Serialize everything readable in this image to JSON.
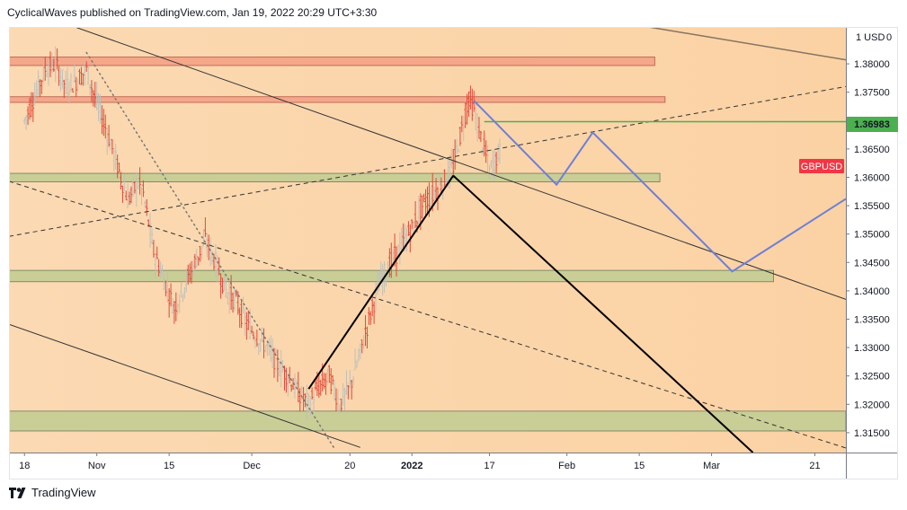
{
  "header": {
    "published_text": "CyclicalWaves published on TradingView.com, Jan 19, 2022 20:29 UTC+3:30"
  },
  "footer": {
    "brand": "TradingView"
  },
  "chart_data": {
    "type": "candlestick",
    "symbol": "GBPUSD",
    "currency_label": "1 USD",
    "currency_flag": "0",
    "current_price": "1.36983",
    "y_ticks": [
      "1.38000",
      "1.37500",
      "1.37000",
      "1.36500",
      "1.36000",
      "1.35500",
      "1.35000",
      "1.34500",
      "1.34000",
      "1.33500",
      "1.33000",
      "1.32500",
      "1.32000",
      "1.31500"
    ],
    "ylim": [
      1.3115,
      1.3865
    ],
    "x_ticks": [
      {
        "label": "18",
        "day": 0
      },
      {
        "label": "Nov",
        "day": 14
      },
      {
        "label": "15",
        "day": 28
      },
      {
        "label": "Dec",
        "day": 44
      },
      {
        "label": "20",
        "day": 63
      },
      {
        "label": "2022",
        "day": 75,
        "bold": true
      },
      {
        "label": "17",
        "day": 90
      },
      {
        "label": "Feb",
        "day": 105
      },
      {
        "label": "15",
        "day": 119
      },
      {
        "label": "Mar",
        "day": 133
      },
      {
        "label": "21",
        "day": 153
      }
    ],
    "x_domain_days": [
      -3,
      159
    ],
    "x_anchor_date": "Oct 18",
    "zones": [
      {
        "kind": "resistance",
        "y1": 1.3812,
        "y2": 1.3797,
        "d1": -3,
        "d2": 122,
        "color": "#f4a789"
      },
      {
        "kind": "resistance",
        "y1": 1.3742,
        "y2": 1.3732,
        "d1": -3,
        "d2": 124,
        "color": "#f4a789"
      },
      {
        "kind": "support",
        "y1": 1.3607,
        "y2": 1.3592,
        "d1": -3,
        "d2": 123,
        "color": "#c9ce96"
      },
      {
        "kind": "support",
        "y1": 1.3436,
        "y2": 1.3416,
        "d1": -3,
        "d2": 145,
        "color": "#c9ce96"
      },
      {
        "kind": "support",
        "y1": 1.3188,
        "y2": 1.3153,
        "d1": -3,
        "d2": 159,
        "color": "#c9ce96"
      }
    ],
    "trendlines": [
      {
        "style": "solid",
        "color": "#333333",
        "width": 1,
        "p1": [
          -3,
          1.3906
        ],
        "p2": [
          159,
          1.3385
        ]
      },
      {
        "style": "solid",
        "color": "#333333",
        "width": 1,
        "p1": [
          -3,
          1.3341
        ],
        "p2": [
          65,
          1.3124
        ]
      },
      {
        "style": "dashed",
        "color": "#333333",
        "width": 1,
        "p1": [
          -3,
          1.3593
        ],
        "p2": [
          159,
          1.3123
        ]
      },
      {
        "style": "dashed",
        "color": "#333333",
        "width": 1,
        "p1": [
          -3,
          1.3496
        ],
        "p2": [
          159,
          1.376
        ]
      },
      {
        "style": "dotted",
        "color": "#777777",
        "width": 1.5,
        "p1": [
          12,
          1.382
        ],
        "p2": [
          60,
          1.3122
        ]
      },
      {
        "style": "solid",
        "color": "#857462",
        "width": 1.5,
        "p1": [
          101,
          1.3895
        ],
        "p2": [
          159,
          1.3807
        ]
      },
      {
        "style": "solid",
        "color": "#000000",
        "width": 2,
        "p1": [
          55,
          1.3227
        ],
        "p2": [
          83,
          1.3603
        ]
      },
      {
        "style": "solid",
        "color": "#000000",
        "width": 2,
        "p1": [
          83,
          1.3603
        ],
        "p2": [
          141,
          1.3115
        ]
      },
      {
        "style": "solid",
        "color": "#4caf50",
        "width": 1.5,
        "p1": [
          89,
          1.3698
        ],
        "p2": [
          159,
          1.3698
        ]
      }
    ],
    "projection": {
      "color": "#6f7fd6",
      "points": [
        [
          87,
          1.3735
        ],
        [
          103,
          1.3587
        ],
        [
          110,
          1.3679
        ],
        [
          137,
          1.3434
        ],
        [
          159,
          1.3562
        ]
      ]
    },
    "price_path": [
      [
        0,
        1.37
      ],
      [
        2,
        1.3745
      ],
      [
        4,
        1.379
      ],
      [
        6,
        1.38
      ],
      [
        8,
        1.376
      ],
      [
        10,
        1.377
      ],
      [
        12,
        1.379
      ],
      [
        14,
        1.373
      ],
      [
        16,
        1.368
      ],
      [
        18,
        1.362
      ],
      [
        20,
        1.356
      ],
      [
        22,
        1.359
      ],
      [
        23,
        1.357
      ],
      [
        25,
        1.347
      ],
      [
        27,
        1.342
      ],
      [
        29,
        1.337
      ],
      [
        31,
        1.341
      ],
      [
        33,
        1.345
      ],
      [
        35,
        1.349
      ],
      [
        37,
        1.345
      ],
      [
        39,
        1.34
      ],
      [
        41,
        1.338
      ],
      [
        43,
        1.334
      ],
      [
        45,
        1.332
      ],
      [
        47,
        1.33
      ],
      [
        49,
        1.327
      ],
      [
        51,
        1.325
      ],
      [
        53,
        1.322
      ],
      [
        55,
        1.32
      ],
      [
        57,
        1.323
      ],
      [
        59,
        1.325
      ],
      [
        61,
        1.32
      ],
      [
        63,
        1.323
      ],
      [
        65,
        1.329
      ],
      [
        67,
        1.336
      ],
      [
        69,
        1.342
      ],
      [
        71,
        1.345
      ],
      [
        73,
        1.348
      ],
      [
        75,
        1.351
      ],
      [
        77,
        1.355
      ],
      [
        79,
        1.357
      ],
      [
        81,
        1.359
      ],
      [
        83,
        1.362
      ],
      [
        85,
        1.37
      ],
      [
        86,
        1.374
      ],
      [
        87,
        1.372
      ],
      [
        88,
        1.368
      ],
      [
        89,
        1.365
      ],
      [
        90,
        1.361
      ],
      [
        91,
        1.363
      ],
      [
        92,
        1.3645
      ]
    ]
  }
}
